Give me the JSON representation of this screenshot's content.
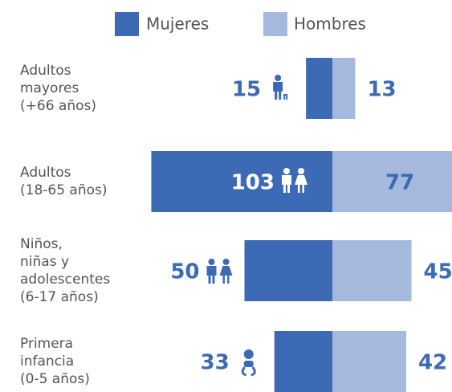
{
  "chart_data": {
    "type": "diverging_bar",
    "categories": [
      [
        "Adultos",
        "mayores",
        "(+66 años)"
      ],
      [
        "Adultos",
        "(18-65 años)"
      ],
      [
        "Niños,",
        "niñas y",
        "adolescentes",
        "(6-17 años)"
      ],
      [
        "Primera",
        "infancia",
        "(0-5 años)"
      ]
    ],
    "series": [
      {
        "name": "Mujeres",
        "color": "#3d6ab5",
        "values": [
          15,
          103,
          50,
          33
        ]
      },
      {
        "name": "Hombres",
        "color": "#a5b9de",
        "values": [
          13,
          77,
          45,
          42
        ]
      }
    ]
  }
}
